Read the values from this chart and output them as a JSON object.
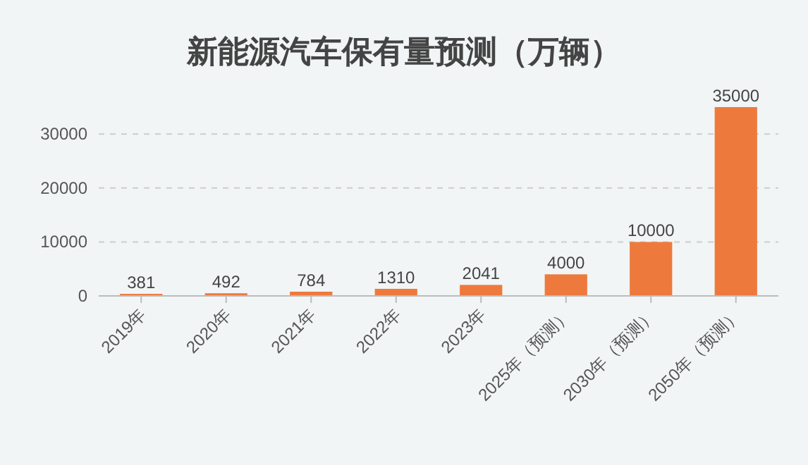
{
  "chart_data": {
    "type": "bar",
    "title": "新能源汽车保有量预测（万辆）",
    "categories": [
      "2019年",
      "2020年",
      "2021年",
      "2022年",
      "2023年",
      "2025年（预测）",
      "2030年（预测）",
      "2050年（预测）"
    ],
    "values": [
      381,
      492,
      784,
      1310,
      2041,
      4000,
      10000,
      35000
    ],
    "color": "#ed7a3c",
    "ylim": [
      0,
      35000
    ],
    "yticks": [
      0,
      10000,
      20000,
      30000
    ],
    "grid": "y",
    "data_labels": true
  }
}
